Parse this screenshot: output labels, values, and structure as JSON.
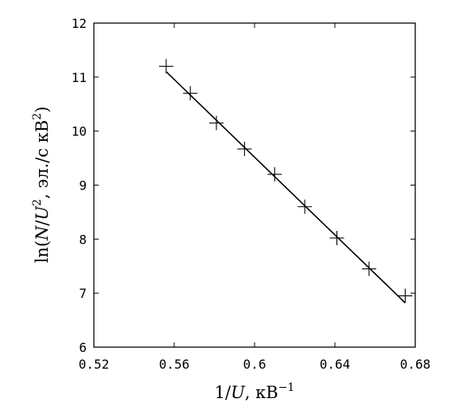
{
  "chart_data": {
    "type": "scatter",
    "title": "",
    "xlabel": "1/U, кВ⁻¹",
    "ylabel": "ln(N/U², эл./с кВ²)",
    "xlabel_parts": {
      "pre": "1/",
      "var": "U",
      "post": ", кВ",
      "sup": "−1"
    },
    "ylabel_parts": {
      "pre": "ln(",
      "var1": "N",
      "mid": "/",
      "var2": "U",
      "sup1": "2",
      "post": ", эл./с кВ",
      "sup2": "2",
      "end": ")"
    },
    "xlim": [
      0.52,
      0.68
    ],
    "ylim": [
      6,
      12
    ],
    "xticks": [
      0.52,
      0.56,
      0.6,
      0.64,
      0.68
    ],
    "xtick_labels": [
      "0.52",
      "0.56",
      "0.6",
      "0.64",
      "0.68"
    ],
    "yticks": [
      6,
      7,
      8,
      9,
      10,
      11,
      12
    ],
    "ytick_labels": [
      "6",
      "7",
      "8",
      "9",
      "10",
      "11",
      "12"
    ],
    "grid": false,
    "legend": "none",
    "series": [
      {
        "marker": "plus",
        "x": [
          0.556,
          0.568,
          0.581,
          0.595,
          0.61,
          0.625,
          0.641,
          0.657,
          0.675
        ],
        "y": [
          11.2,
          10.7,
          10.15,
          9.67,
          9.2,
          8.6,
          8.02,
          7.45,
          6.95
        ]
      }
    ],
    "fit_line": {
      "x": [
        0.556,
        0.675
      ],
      "y": [
        11.1,
        6.82
      ]
    },
    "colors": {
      "marks": "#000000",
      "frame": "#000000"
    }
  }
}
